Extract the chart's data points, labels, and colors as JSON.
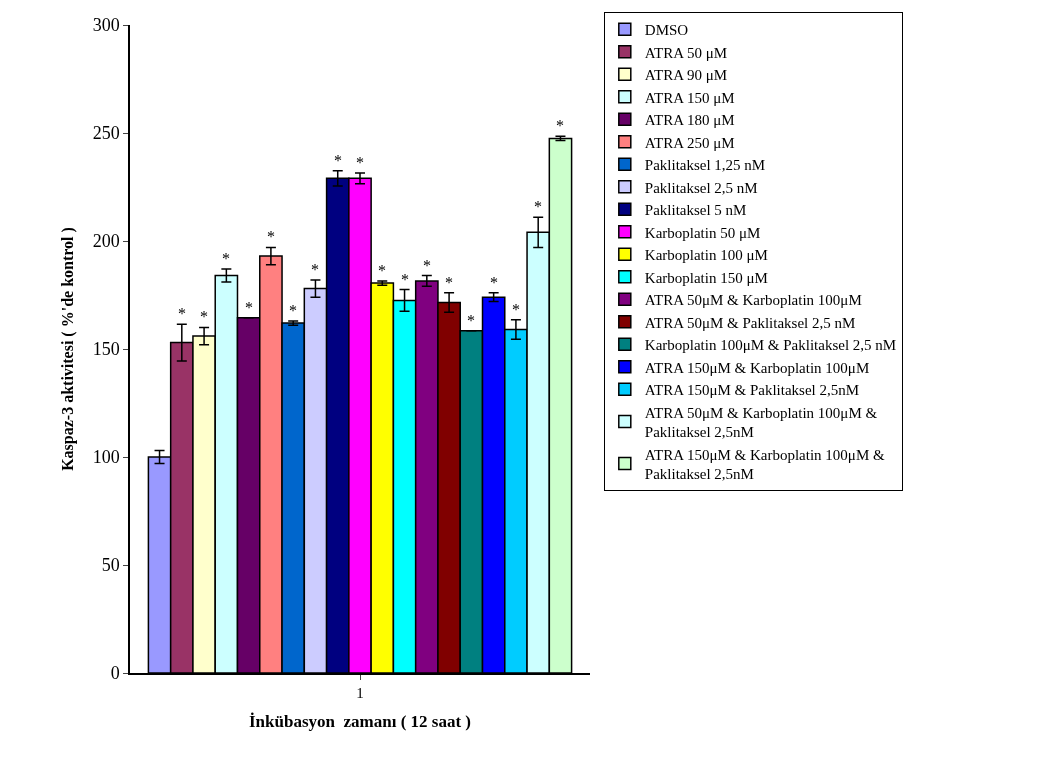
{
  "chart_data": {
    "type": "bar",
    "xlabel": "İnkübasyon  zamanı ( 12 saat )",
    "ylabel": "Kaspaz-3 aktivitesi ( %'de kontrol )",
    "categories": [
      "1"
    ],
    "ylim": [
      0,
      300
    ],
    "yticks": [
      0,
      50,
      100,
      150,
      200,
      250,
      300
    ],
    "legend": "right",
    "series": [
      {
        "name": "DMSO",
        "color": "#9999ff",
        "values": [
          100
        ],
        "errors": [
          3
        ],
        "value_labels": [
          null
        ]
      },
      {
        "name": "ATRA 50 μM",
        "color": "#993366",
        "values": [
          153
        ],
        "errors": [
          8.5
        ],
        "value_labels": [
          "*"
        ]
      },
      {
        "name": "ATRA 90 μM",
        "color": "#ffffcc",
        "values": [
          156
        ],
        "errors": [
          4
        ],
        "value_labels": [
          "*"
        ]
      },
      {
        "name": "ATRA 150 μM",
        "color": "#ccffff",
        "values": [
          184
        ],
        "errors": [
          3
        ],
        "value_labels": [
          "*"
        ]
      },
      {
        "name": "ATRA 180 μM",
        "color": "#660066",
        "values": [
          164.5
        ],
        "errors": [
          null
        ],
        "value_labels": [
          "*"
        ]
      },
      {
        "name": "ATRA 250 μM",
        "color": "#ff8080",
        "values": [
          193
        ],
        "errors": [
          4
        ],
        "value_labels": [
          "*"
        ]
      },
      {
        "name": "Paklitaksel 1,25 nM",
        "color": "#0066cc",
        "values": [
          162
        ],
        "errors": [
          1
        ],
        "value_labels": [
          "*"
        ]
      },
      {
        "name": "Paklitaksel 2,5 nM",
        "color": "#ccccff",
        "values": [
          178
        ],
        "errors": [
          4
        ],
        "value_labels": [
          "*"
        ]
      },
      {
        "name": "Paklitaksel 5 nM",
        "color": "#000080",
        "values": [
          229
        ],
        "errors": [
          3.5
        ],
        "value_labels": [
          "*"
        ]
      },
      {
        "name": "Karboplatin 50 μM",
        "color": "#ff00ff",
        "values": [
          229
        ],
        "errors": [
          2.5
        ],
        "value_labels": [
          "*"
        ]
      },
      {
        "name": "Karboplatin 100 μM",
        "color": "#ffff00",
        "values": [
          180.5
        ],
        "errors": [
          1
        ],
        "value_labels": [
          "*"
        ]
      },
      {
        "name": "Karboplatin 150 μM",
        "color": "#00ffff",
        "values": [
          172.5
        ],
        "errors": [
          5
        ],
        "value_labels": [
          "*"
        ]
      },
      {
        "name": "ATRA 50μM & Karboplatin 100μM",
        "color": "#800080",
        "values": [
          181.5
        ],
        "errors": [
          2.5
        ],
        "value_labels": [
          "*"
        ]
      },
      {
        "name": "ATRA 50μM & Paklitaksel 2,5 nM",
        "color": "#800000",
        "values": [
          171.5
        ],
        "errors": [
          4.5
        ],
        "value_labels": [
          "*"
        ]
      },
      {
        "name": "Karboplatin 100μM & Paklitaksel 2,5 nM",
        "color": "#008080",
        "values": [
          158.5
        ],
        "errors": [
          null
        ],
        "value_labels": [
          "*"
        ]
      },
      {
        "name": "ATRA 150μM & Karboplatin 100μM",
        "color": "#0000ff",
        "values": [
          174
        ],
        "errors": [
          2
        ],
        "value_labels": [
          "*"
        ]
      },
      {
        "name": "ATRA 150μM & Paklitaksel 2,5nM",
        "color": "#00ccff",
        "values": [
          159
        ],
        "errors": [
          4.5
        ],
        "value_labels": [
          "*"
        ]
      },
      {
        "name": "ATRA 50μM & Karboplatin 100μM & Paklitaksel 2,5nM",
        "color": "#ccffff",
        "values": [
          204
        ],
        "errors": [
          7
        ],
        "value_labels": [
          "*"
        ]
      },
      {
        "name": "ATRA 150μM & Karboplatin 100μM & Paklitaksel 2,5nM",
        "color": "#ccffcc",
        "values": [
          247.5
        ],
        "errors": [
          1
        ],
        "value_labels": [
          "*"
        ]
      }
    ]
  }
}
